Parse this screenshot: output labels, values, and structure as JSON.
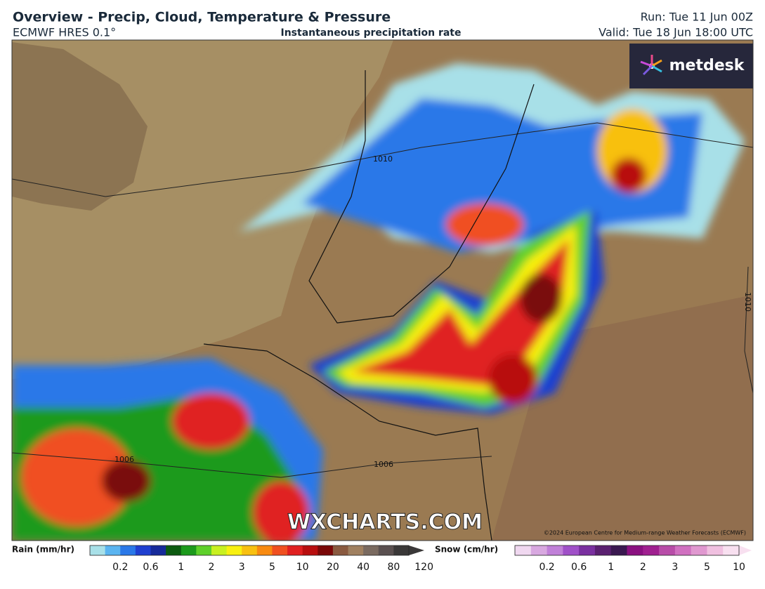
{
  "header": {
    "title": "Overview - Precip, Cloud, Temperature & Pressure",
    "model": "ECMWF HRES 0.1°",
    "field": "Instantaneous precipitation rate",
    "run": "Run: Tue 11 Jun 00Z",
    "valid": "Valid: Tue 18 Jun 18:00 UTC"
  },
  "map": {
    "brand": "metdesk",
    "watermark": "WXCHARTS.COM",
    "copyright": "©2024 European Centre for Medium-range Weather Forecasts (ECMWF)",
    "isobar_labels": [
      "1010",
      "1006",
      "1006",
      "1010"
    ]
  },
  "legend": {
    "rain": {
      "label": "Rain (mm/hr)",
      "ticks": [
        0.2,
        0.6,
        1,
        2,
        3,
        5,
        10,
        20,
        40,
        80,
        120
      ],
      "colors": [
        "#a8e0e8",
        "#5ab4f0",
        "#2a78e8",
        "#1f3fd0",
        "#162a9a",
        "#0c5a10",
        "#1c9a1c",
        "#5ed02a",
        "#c8f020",
        "#f8f010",
        "#f8c010",
        "#f88a10",
        "#f05020",
        "#e02020",
        "#b80e0e",
        "#7a0808",
        "#8a5a40",
        "#a08060",
        "#7a6a60",
        "#5a5050",
        "#3a3838"
      ]
    },
    "snow": {
      "label": "Snow (cm/hr)",
      "ticks": [
        0.2,
        0.6,
        1,
        2,
        3,
        5,
        10
      ],
      "colors": [
        "#f0d8f0",
        "#d8a8e0",
        "#c080d8",
        "#a050c8",
        "#7a30a0",
        "#5a2070",
        "#3a1850",
        "#8a1080",
        "#a02090",
        "#b84ca8",
        "#d070c0",
        "#e098d0",
        "#f0c0e0",
        "#f8e0f0"
      ]
    }
  }
}
